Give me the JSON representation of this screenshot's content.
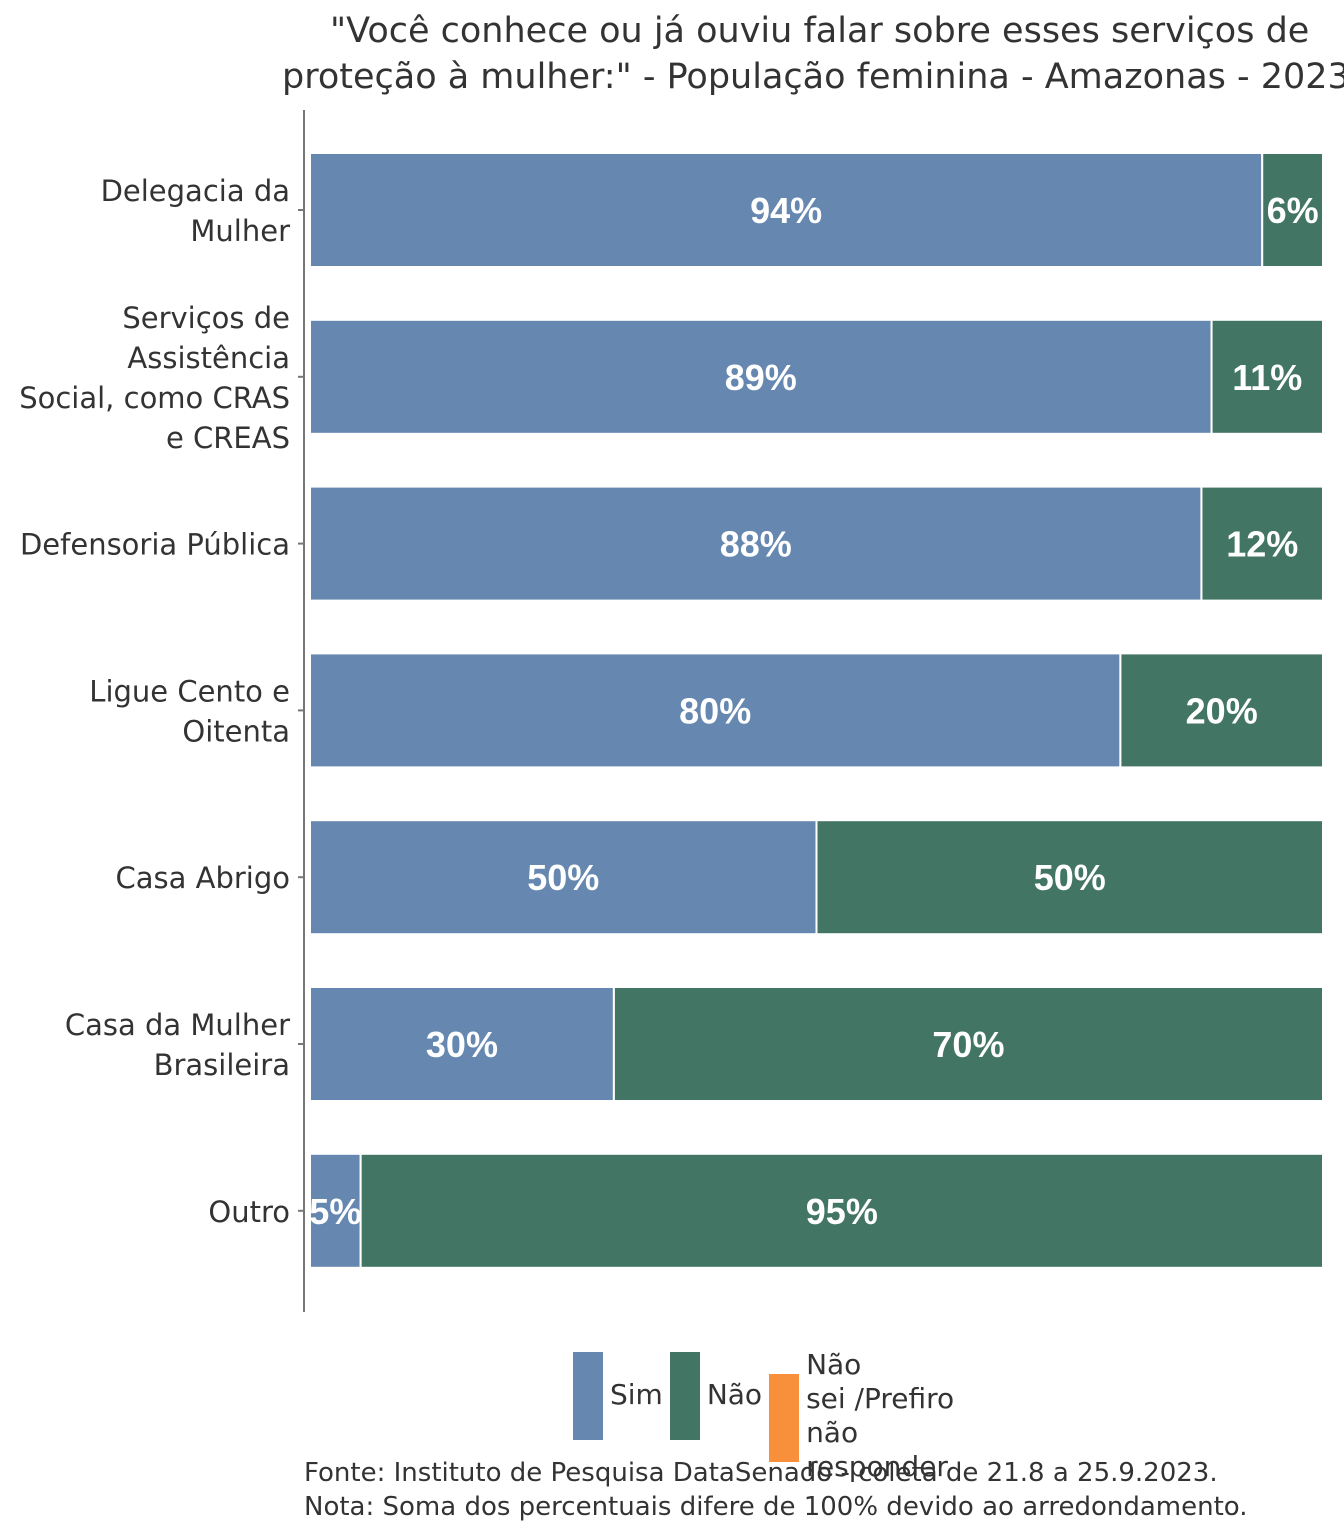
{
  "chart_data": {
    "type": "bar",
    "orientation": "horizontal",
    "stacked": true,
    "title_lines": [
      "\"Você conhece ou já ouviu falar sobre esses serviços de",
      "proteção à mulher:\" - População feminina - Amazonas - 2023"
    ],
    "categories": [
      [
        "Delegacia da",
        "Mulher"
      ],
      [
        "Serviços de",
        "Assistência",
        "Social, como CRAS",
        "e CREAS"
      ],
      [
        "Defensoria Pública"
      ],
      [
        "Ligue Cento e",
        "Oitenta"
      ],
      [
        "Casa Abrigo"
      ],
      [
        "Casa da Mulher",
        "Brasileira"
      ],
      [
        "Outro"
      ]
    ],
    "series": [
      {
        "name": "Sim",
        "color": "#6688b0",
        "values": [
          94,
          89,
          88,
          80,
          50,
          30,
          5
        ]
      },
      {
        "name": "Não",
        "color": "#437565",
        "values": [
          6,
          11,
          12,
          20,
          50,
          70,
          95
        ]
      },
      {
        "name": "Não sei /Prefiro não responder",
        "color": "#f78f3b",
        "values": [
          0,
          0,
          0,
          0,
          0,
          0,
          0
        ]
      }
    ],
    "value_suffix": "%",
    "xlim": [
      0,
      100
    ],
    "legend_position": "bottom",
    "grid": false
  },
  "legend": {
    "sim": "Sim",
    "nao": "Não",
    "nao_sei_lines": [
      "Não",
      "sei /Prefiro",
      "não responder"
    ]
  },
  "footer": {
    "source": "Fonte: Instituto de Pesquisa DataSenado - coleta de 21.8 a 25.9.2023.",
    "note": "Nota: Soma dos percentuais difere de 100% devido ao arredondamento."
  }
}
